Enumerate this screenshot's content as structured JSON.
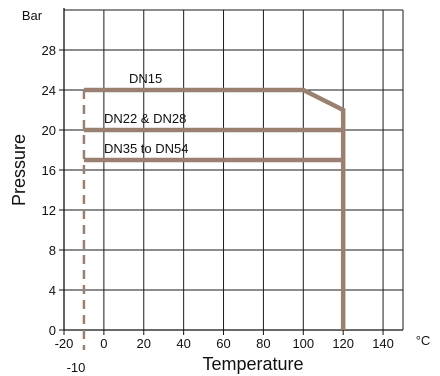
{
  "chart_data": {
    "type": "line",
    "xlabel": "Temperature",
    "ylabel": "Pressure",
    "x_unit": "°C",
    "y_unit": "Bar",
    "xlim": [
      -20,
      150
    ],
    "ylim": [
      0,
      32
    ],
    "x_ticks": [
      -20,
      0,
      20,
      40,
      60,
      80,
      100,
      120,
      140
    ],
    "y_ticks": [
      0,
      4,
      8,
      12,
      16,
      20,
      24,
      28
    ],
    "grid": true,
    "line_color": "#9a8070",
    "series": [
      {
        "name": "DN15",
        "points": [
          [
            -10,
            24
          ],
          [
            100,
            24
          ],
          [
            120,
            22
          ],
          [
            120,
            0
          ]
        ]
      },
      {
        "name": "DN22 & DN28",
        "points": [
          [
            -10,
            20
          ],
          [
            120,
            20
          ]
        ]
      },
      {
        "name": "DN35 to DN54",
        "points": [
          [
            -10,
            17
          ],
          [
            120,
            17
          ]
        ]
      }
    ],
    "min_temperature": {
      "label": "-10",
      "x": -10,
      "y_range": [
        -2,
        24
      ]
    }
  }
}
